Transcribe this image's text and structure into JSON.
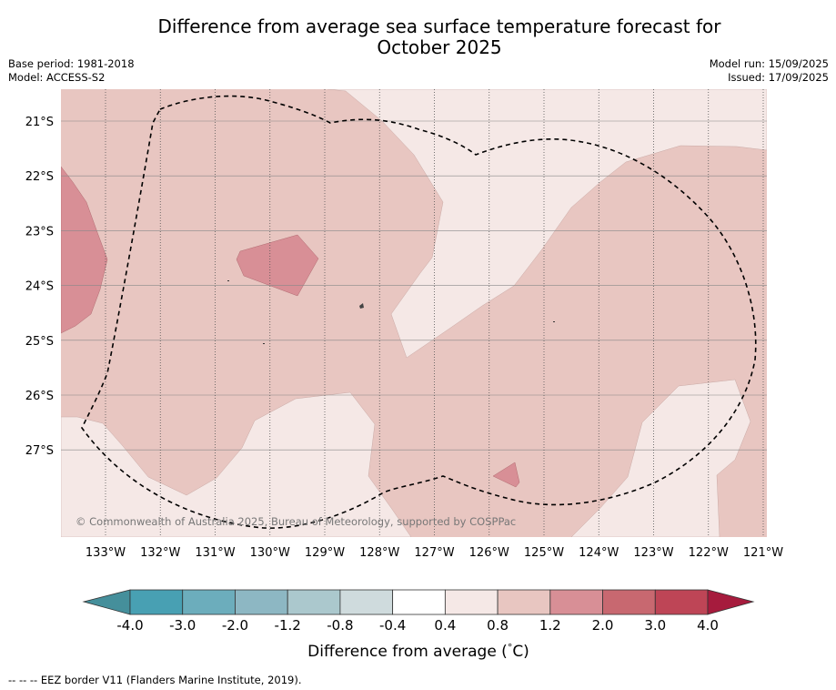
{
  "title_line1": "Difference from average sea surface temperature forecast for",
  "title_line2": "October 2025",
  "base_period": "Base period: 1981-2018",
  "model": "Model: ACCESS-S2",
  "model_run": "Model run: 15/09/2025",
  "issued": "Issued: 17/09/2025",
  "copyright": "© Commonwealth of Australia 2025, Bureau of Meteorology, supported by COSPPac",
  "lat_labels": [
    "21°S",
    "22°S",
    "23°S",
    "24°S",
    "25°S",
    "26°S",
    "27°S"
  ],
  "lon_labels": [
    "133°W",
    "132°W",
    "131°W",
    "130°W",
    "129°W",
    "128°W",
    "127°W",
    "126°W",
    "125°W",
    "124°W",
    "123°W",
    "122°W",
    "121°W"
  ],
  "colorbar": {
    "title": "Difference from average (",
    "unit_symbol": "°",
    "unit_tail": "C)",
    "tick_labels": [
      "-4.0",
      "-3.0",
      "-2.0",
      "-1.2",
      "-0.8",
      "-0.4",
      "0.4",
      "0.8",
      "1.2",
      "2.0",
      "3.0",
      "4.0"
    ],
    "colors": [
      "#458f9b",
      "#48a0b3",
      "#6cadbc",
      "#8db7c3",
      "#abc8cd",
      "#cfdbdd",
      "#ffffff",
      "#f5e8e6",
      "#e8c6c1",
      "#d88f96",
      "#c86870",
      "#be4556",
      "#a61b3d"
    ]
  },
  "legend_note": "--  --  -- EEZ border V11 (Flanders Marine Institute, 2019)."
}
